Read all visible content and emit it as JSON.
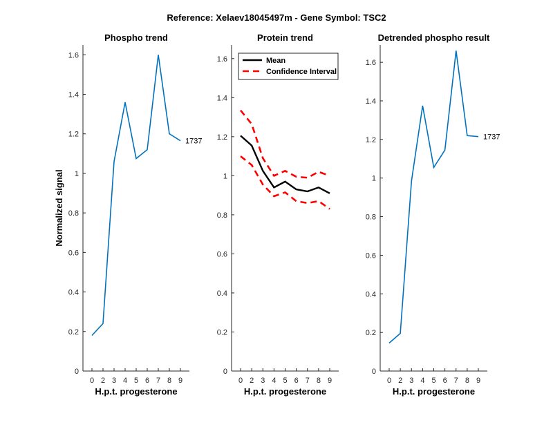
{
  "figure": {
    "suptitle": "Reference:  Xelaev18045497m - Gene Symbol:  TSC2"
  },
  "chart_data": [
    {
      "type": "line",
      "title": "Phospho trend",
      "xlabel": "H.p.t. progesterone",
      "ylabel": "Normalized signal",
      "categories": [
        "0",
        "2",
        "3",
        "4",
        "5",
        "6",
        "7",
        "8",
        "9"
      ],
      "ylim": [
        0,
        1.65
      ],
      "yticks": [
        0,
        0.2,
        0.4,
        0.6,
        0.8,
        1,
        1.2,
        1.4,
        1.6
      ],
      "series": [
        {
          "name": "1737",
          "color": "#0072BD",
          "style": "solid",
          "values": [
            0.18,
            0.24,
            1.06,
            1.36,
            1.075,
            1.12,
            1.6,
            1.2,
            1.165
          ]
        }
      ],
      "annotations": [
        "1737"
      ]
    },
    {
      "type": "line",
      "title": "Protein trend",
      "xlabel": "H.p.t. progesterone",
      "ylabel": "",
      "categories": [
        "0",
        "2",
        "3",
        "4",
        "5",
        "6",
        "7",
        "8",
        "9"
      ],
      "ylim": [
        0,
        1.67
      ],
      "yticks": [
        0,
        0.2,
        0.4,
        0.6,
        0.8,
        1,
        1.2,
        1.4,
        1.6
      ],
      "legend_position": "top-left",
      "series": [
        {
          "name": "Mean",
          "color": "#000000",
          "style": "solid",
          "values": [
            1.205,
            1.155,
            1.025,
            0.94,
            0.97,
            0.93,
            0.92,
            0.94,
            0.91
          ]
        },
        {
          "name": "Confidence Interval",
          "color": "#FF0000",
          "style": "dashed",
          "values": [
            1.335,
            1.265,
            1.09,
            1.0,
            1.025,
            0.995,
            0.99,
            1.02,
            1.0
          ]
        },
        {
          "name": "",
          "color": "#FF0000",
          "style": "dashed",
          "values": [
            1.1,
            1.055,
            0.955,
            0.895,
            0.915,
            0.87,
            0.86,
            0.87,
            0.83
          ]
        }
      ]
    },
    {
      "type": "line",
      "title": "Detrended phospho result",
      "xlabel": "H.p.t. progesterone",
      "ylabel": "",
      "categories": [
        "0",
        "2",
        "3",
        "4",
        "5",
        "6",
        "7",
        "8",
        "9"
      ],
      "ylim": [
        0,
        1.69
      ],
      "yticks": [
        0,
        0.2,
        0.4,
        0.6,
        0.8,
        1,
        1.2,
        1.4,
        1.6
      ],
      "series": [
        {
          "name": "1737",
          "color": "#0072BD",
          "style": "solid",
          "values": [
            0.145,
            0.195,
            0.985,
            1.375,
            1.055,
            1.145,
            1.66,
            1.22,
            1.215
          ]
        }
      ],
      "annotations": [
        "1737"
      ]
    }
  ]
}
